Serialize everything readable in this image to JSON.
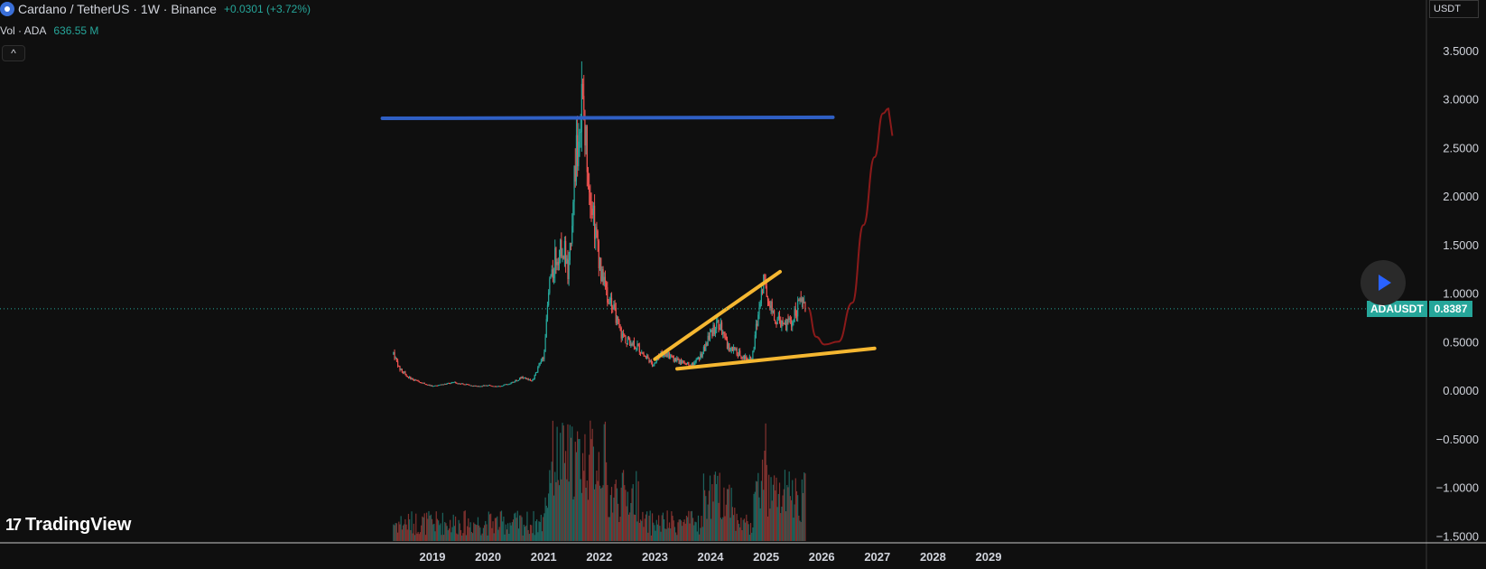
{
  "header": {
    "symbol_title": "Cardano / TetherUS · 1W · Binance",
    "change": "+0.0301 (+3.72%)",
    "vol_label": "Vol · ADA",
    "vol_value": "636.55 M",
    "collapse_glyph": "^"
  },
  "price_axis": {
    "currency": "USDT",
    "tick_labels": [
      "3.5000",
      "3.0000",
      "2.5000",
      "2.0000",
      "1.5000",
      "1.0000",
      "0.5000",
      "0.0000",
      "−0.5000",
      "−1.0000",
      "−1.5000"
    ],
    "ticks": [
      3.5,
      3.0,
      2.5,
      2.0,
      1.5,
      1.0,
      0.5,
      0.0,
      -0.5,
      -1.0,
      -1.5
    ]
  },
  "time_axis": {
    "labels": [
      "2019",
      "2020",
      "2021",
      "2022",
      "2023",
      "2024",
      "2025",
      "2026",
      "2027",
      "2028",
      "2029"
    ]
  },
  "last_price": {
    "symbol": "ADAUSDT",
    "value": "0.8387",
    "price": 0.8387
  },
  "logo": {
    "text": "TradingView",
    "mark": "17"
  },
  "colors": {
    "background": "#0f0f0f",
    "up": "#26a69a",
    "down": "#ef5350",
    "resistance_line": "#2f5fc4",
    "wedge_lines": "#f5b731",
    "projection": "#8b1a1a",
    "play_icon": "#2962ff"
  },
  "icons": {
    "play": "play-icon",
    "symbol": "cardano-icon",
    "logo": "tradingview-logo"
  },
  "chart_data": {
    "type": "line",
    "title": "Cardano / TetherUS · 1W · Binance",
    "xlabel": "",
    "ylabel": "USDT",
    "ylim": [
      -1.5,
      3.7
    ],
    "x_range": [
      2018.3,
      2029.5
    ],
    "grid": false,
    "series": [
      {
        "name": "ADAUSDT",
        "points": [
          [
            2018.3,
            0.37
          ],
          [
            2018.4,
            0.23
          ],
          [
            2018.6,
            0.12
          ],
          [
            2018.8,
            0.08
          ],
          [
            2019.0,
            0.04
          ],
          [
            2019.2,
            0.06
          ],
          [
            2019.4,
            0.08
          ],
          [
            2019.6,
            0.06
          ],
          [
            2019.8,
            0.04
          ],
          [
            2020.0,
            0.05
          ],
          [
            2020.2,
            0.04
          ],
          [
            2020.4,
            0.07
          ],
          [
            2020.6,
            0.13
          ],
          [
            2020.8,
            0.1
          ],
          [
            2021.0,
            0.35
          ],
          [
            2021.1,
            1.05
          ],
          [
            2021.2,
            1.35
          ],
          [
            2021.35,
            1.5
          ],
          [
            2021.45,
            1.2
          ],
          [
            2021.55,
            2.2
          ],
          [
            2021.68,
            2.95
          ],
          [
            2021.8,
            2.3
          ],
          [
            2021.9,
            1.75
          ],
          [
            2022.0,
            1.3
          ],
          [
            2022.1,
            1.05
          ],
          [
            2022.25,
            0.85
          ],
          [
            2022.4,
            0.55
          ],
          [
            2022.6,
            0.48
          ],
          [
            2022.8,
            0.38
          ],
          [
            2022.95,
            0.26
          ],
          [
            2023.1,
            0.38
          ],
          [
            2023.25,
            0.36
          ],
          [
            2023.4,
            0.3
          ],
          [
            2023.55,
            0.28
          ],
          [
            2023.7,
            0.26
          ],
          [
            2023.85,
            0.38
          ],
          [
            2024.0,
            0.58
          ],
          [
            2024.15,
            0.7
          ],
          [
            2024.3,
            0.45
          ],
          [
            2024.45,
            0.4
          ],
          [
            2024.6,
            0.34
          ],
          [
            2024.75,
            0.33
          ],
          [
            2024.88,
            0.9
          ],
          [
            2024.95,
            1.1
          ],
          [
            2025.05,
            0.95
          ],
          [
            2025.15,
            0.75
          ],
          [
            2025.3,
            0.65
          ],
          [
            2025.45,
            0.7
          ],
          [
            2025.6,
            0.9
          ],
          [
            2025.72,
            0.84
          ]
        ]
      }
    ],
    "volume_bars_visible": true,
    "drawings": {
      "resistance": {
        "from": [
          2018.1,
          2.8
        ],
        "to": [
          2026.2,
          2.81
        ]
      },
      "wedge_upper": {
        "from": [
          2023.0,
          0.32
        ],
        "to": [
          2025.25,
          1.22
        ]
      },
      "wedge_lower": {
        "from": [
          2023.4,
          0.22
        ],
        "to": [
          2026.95,
          0.43
        ]
      },
      "projection": [
        [
          2025.75,
          0.85
        ],
        [
          2025.9,
          0.55
        ],
        [
          2026.05,
          0.47
        ],
        [
          2026.3,
          0.5
        ],
        [
          2026.55,
          0.9
        ],
        [
          2026.75,
          1.7
        ],
        [
          2026.95,
          2.4
        ],
        [
          2027.1,
          2.85
        ],
        [
          2027.2,
          2.9
        ]
      ]
    }
  }
}
